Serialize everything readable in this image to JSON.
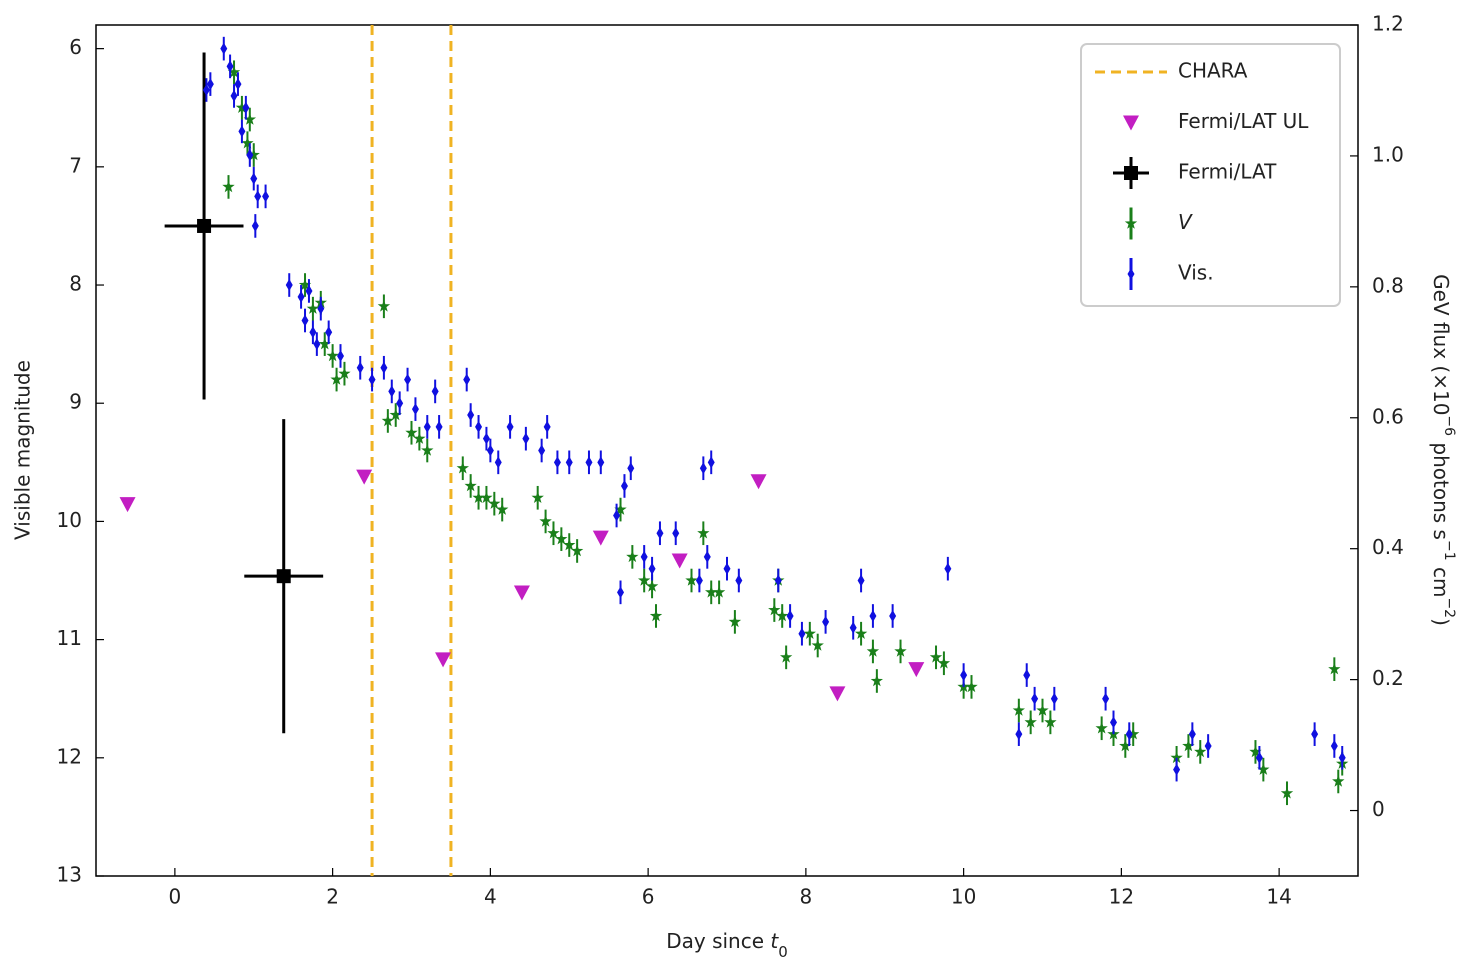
{
  "chart_data": {
    "type": "scatter",
    "xlabel": [
      "Day since ",
      "t",
      "0"
    ],
    "ylabel": "Visible magnitude",
    "y2label": [
      "GeV flux (×10",
      "−6",
      " photons s",
      "−1",
      " cm",
      "−2",
      ")"
    ],
    "xlim": [
      -1,
      15
    ],
    "xticks": [
      0,
      2,
      4,
      6,
      8,
      10,
      12,
      14
    ],
    "ylim": [
      13,
      5.8
    ],
    "yticks": [
      6,
      7,
      8,
      9,
      10,
      11,
      12,
      13
    ],
    "y2lim": [
      -0.1,
      1.2
    ],
    "y2ticks": [
      0,
      0.2,
      0.4,
      0.6,
      0.8,
      {
        "value": 1,
        "label": "1.0"
      },
      1.2
    ],
    "legend": "upper right",
    "series": [
      {
        "name": "CHARA",
        "color": "#f0b323",
        "marker": "vline",
        "x": [
          2.5,
          3.5
        ]
      },
      {
        "name": "Fermi/LAT UL",
        "color": "#c21ec2",
        "marker": "triangle",
        "axis": "y2",
        "x": [
          -0.6,
          2.4,
          3.4,
          4.4,
          5.4,
          6.4,
          7.4,
          8.4,
          9.4
        ],
        "values": [
          0.468,
          0.51,
          0.231,
          0.333,
          0.417,
          0.382,
          0.503,
          0.179,
          0.216
        ]
      },
      {
        "name": "Fermi/LAT",
        "color": "#000000",
        "marker": "square",
        "axis": "y2",
        "x": [
          0.37,
          1.38
        ],
        "values": [
          0.893,
          0.358
        ],
        "xerr": [
          0.5,
          0.5
        ],
        "yerr": [
          0.265,
          0.24
        ]
      },
      {
        "name": "V",
        "color": "#1a7f1a",
        "marker": "star",
        "yerr": 0.1,
        "x": [
          0.68,
          0.75,
          0.85,
          0.92,
          0.95,
          1.0,
          1.65,
          1.75,
          1.85,
          1.9,
          2.0,
          2.05,
          2.15,
          2.65,
          2.7,
          2.8,
          3.0,
          3.1,
          3.2,
          3.65,
          3.75,
          3.85,
          3.95,
          4.05,
          4.15,
          4.6,
          4.7,
          4.8,
          4.9,
          5.0,
          5.1,
          5.65,
          5.8,
          5.95,
          6.05,
          6.1,
          6.55,
          6.7,
          6.8,
          6.9,
          7.1,
          7.6,
          7.65,
          7.7,
          7.75,
          8.05,
          8.15,
          8.7,
          8.85,
          8.9,
          9.2,
          9.65,
          9.75,
          10.0,
          10.1,
          10.7,
          10.85,
          11.0,
          11.1,
          11.75,
          11.9,
          12.05,
          12.15,
          12.7,
          12.85,
          13.0,
          13.7,
          13.8,
          14.1,
          14.7,
          14.75,
          14.8
        ],
        "values": [
          7.17,
          6.2,
          6.5,
          6.8,
          6.6,
          6.9,
          8.0,
          8.2,
          8.15,
          8.5,
          8.6,
          8.8,
          8.75,
          8.18,
          9.15,
          9.1,
          9.25,
          9.3,
          9.4,
          9.55,
          9.7,
          9.8,
          9.8,
          9.85,
          9.9,
          9.8,
          10.0,
          10.1,
          10.15,
          10.2,
          10.25,
          9.9,
          10.3,
          10.5,
          10.55,
          10.8,
          10.5,
          10.1,
          10.6,
          10.6,
          10.85,
          10.75,
          10.5,
          10.8,
          11.15,
          10.95,
          11.05,
          10.95,
          11.1,
          11.35,
          11.1,
          11.15,
          11.2,
          11.4,
          11.4,
          11.6,
          11.7,
          11.6,
          11.7,
          11.75,
          11.8,
          11.9,
          11.8,
          12.0,
          11.9,
          11.95,
          11.95,
          12.1,
          12.3,
          11.25,
          12.2,
          12.05
        ]
      },
      {
        "name": "Vis.",
        "color": "#1010e0",
        "marker": "diamond",
        "yerr": 0.1,
        "x": [
          0.4,
          0.45,
          0.62,
          0.7,
          0.75,
          0.8,
          0.85,
          0.9,
          0.95,
          1.0,
          1.05,
          1.15,
          1.02,
          1.45,
          1.6,
          1.65,
          1.7,
          1.75,
          1.8,
          1.85,
          1.95,
          2.1,
          2.35,
          2.5,
          2.65,
          2.75,
          2.85,
          2.95,
          3.05,
          3.2,
          3.35,
          3.3,
          3.7,
          3.75,
          3.85,
          3.95,
          4.0,
          4.1,
          4.25,
          4.45,
          4.65,
          4.72,
          4.85,
          5.0,
          5.25,
          5.4,
          5.6,
          5.7,
          5.78,
          5.95,
          6.05,
          6.15,
          6.35,
          5.65,
          6.7,
          6.75,
          6.8,
          6.65,
          7.0,
          7.15,
          7.65,
          7.8,
          7.95,
          8.25,
          8.6,
          8.7,
          8.85,
          9.1,
          9.8,
          10.0,
          10.7,
          10.8,
          10.9,
          11.15,
          11.8,
          11.9,
          12.1,
          12.7,
          12.9,
          13.1,
          13.75,
          14.45,
          14.7,
          14.8
        ],
        "values": [
          6.35,
          6.3,
          6.0,
          6.15,
          6.4,
          6.3,
          6.7,
          6.5,
          6.9,
          7.1,
          7.25,
          7.25,
          7.5,
          8.0,
          8.1,
          8.3,
          8.05,
          8.4,
          8.5,
          8.2,
          8.4,
          8.6,
          8.7,
          8.8,
          8.7,
          8.9,
          9.0,
          8.8,
          9.05,
          9.2,
          9.2,
          8.9,
          8.8,
          9.1,
          9.2,
          9.3,
          9.4,
          9.5,
          9.2,
          9.3,
          9.4,
          9.2,
          9.5,
          9.5,
          9.5,
          9.5,
          9.95,
          9.7,
          9.55,
          10.3,
          10.4,
          10.1,
          10.1,
          10.6,
          9.55,
          10.3,
          9.5,
          10.5,
          10.4,
          10.5,
          10.5,
          10.8,
          10.95,
          10.85,
          10.9,
          10.5,
          10.8,
          10.8,
          10.4,
          11.3,
          11.8,
          11.3,
          11.5,
          11.5,
          11.5,
          11.7,
          11.8,
          12.1,
          11.8,
          11.9,
          12.0,
          11.8,
          11.9,
          12.0
        ]
      }
    ]
  }
}
